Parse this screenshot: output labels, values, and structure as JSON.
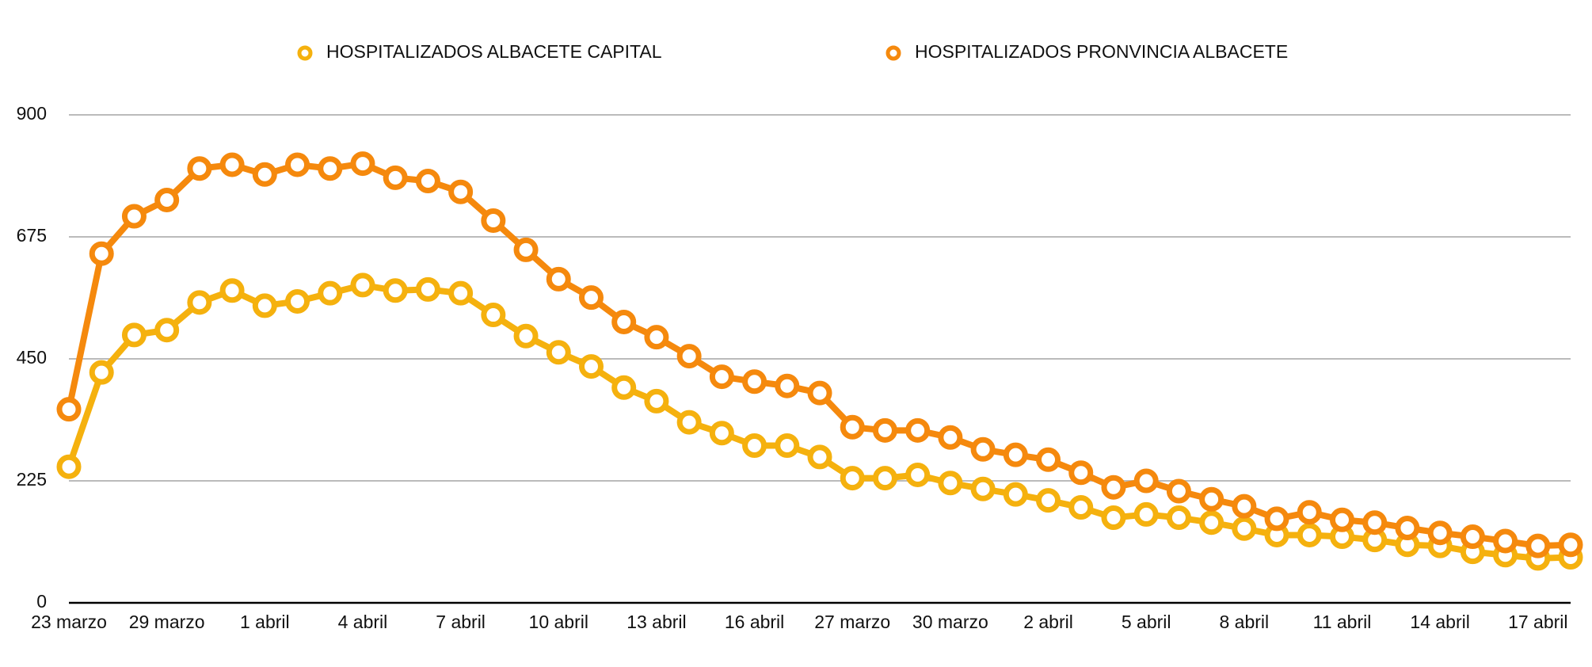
{
  "chart_data": {
    "type": "line",
    "categories": [
      "23 marzo",
      null,
      null,
      "29 marzo",
      null,
      null,
      "1 abril",
      null,
      null,
      "4 abril",
      null,
      null,
      "7 abril",
      null,
      null,
      "10 abril",
      null,
      null,
      "13 abril",
      null,
      null,
      "16 abril",
      null,
      null,
      "27 marzo",
      null,
      null,
      "30 marzo",
      null,
      null,
      "2 abril",
      null,
      null,
      "5 abril",
      null,
      null,
      "8 abril",
      null,
      null,
      "11 abril",
      null,
      null,
      "14 abril",
      null,
      null,
      "17 abril",
      null
    ],
    "series": [
      {
        "name": "HOSPITALIZADOS ALBACETE CAPITAL",
        "color": "#f5b10e",
        "values": [
          251,
          425,
          494,
          503,
          554,
          576,
          548,
          556,
          571,
          586,
          576,
          578,
          571,
          531,
          492,
          462,
          436,
          397,
          372,
          333,
          313,
          290,
          290,
          269,
          230,
          230,
          236,
          221,
          210,
          200,
          189,
          176,
          157,
          163,
          157,
          148,
          137,
          125,
          125,
          122,
          116,
          107,
          105,
          94,
          88,
          82,
          84
        ]
      },
      {
        "name": "HOSPITALIZADOS PRONVINCIA ALBACETE",
        "color": "#f5890d",
        "values": [
          357,
          644,
          713,
          743,
          801,
          808,
          790,
          808,
          801,
          810,
          784,
          778,
          758,
          705,
          651,
          597,
          563,
          518,
          490,
          455,
          417,
          408,
          400,
          387,
          324,
          318,
          318,
          305,
          283,
          273,
          264,
          240,
          213,
          225,
          206,
          191,
          178,
          155,
          167,
          153,
          148,
          138,
          129,
          122,
          114,
          105,
          107
        ]
      }
    ],
    "ylim": [
      0,
      900
    ],
    "yticks": [
      0,
      225,
      450,
      675,
      900
    ],
    "grid": true,
    "legend": "top"
  }
}
